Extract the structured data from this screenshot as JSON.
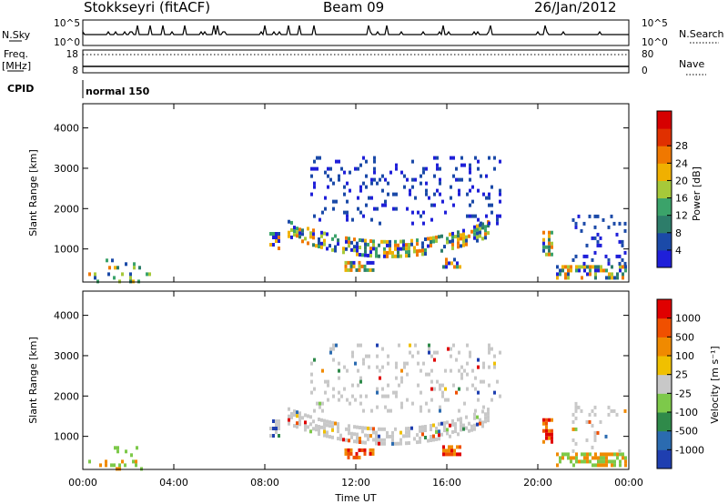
{
  "header": {
    "title": "Stokkseyri (fitACF)",
    "beam": "Beam 09",
    "date": "26/Jan/2012"
  },
  "status_panels": {
    "nsky_label": "N.Sky",
    "nsky_ticks": [
      "10^5",
      "10^0"
    ],
    "nsearch_label": "N.Search",
    "nsearch_ticks": [
      "10^5",
      "10^0"
    ],
    "freq_label": "Freq.",
    "freq_unit": "[MHz]",
    "freq_ticks": [
      "18",
      "8"
    ],
    "nave_label": "Nave",
    "nave_ticks": [
      "80",
      "0"
    ],
    "cpid_label": "CPID",
    "cpid_value": "normal 150"
  },
  "chart_data": [
    {
      "type": "heatmap",
      "name": "power-panel",
      "xlabel": "",
      "ylabel": "Slant Range [km]",
      "xlim": [
        0,
        24
      ],
      "ylim": [
        180,
        4600
      ],
      "y_ticks": [
        1000,
        2000,
        3000,
        4000
      ],
      "y_tick_labels": [
        "1000",
        "2000",
        "3000",
        "4000"
      ],
      "colorbar": {
        "label": "Power [dB]",
        "ticks": [
          "4",
          "8",
          "12",
          "16",
          "20",
          "24",
          "28"
        ],
        "colors": [
          "#1f1fd9",
          "#1b4aa8",
          "#2d7d6a",
          "#3ba36a",
          "#a6c93a",
          "#f0b000",
          "#f07800",
          "#e03000",
          "#d60000"
        ]
      }
    },
    {
      "type": "heatmap",
      "name": "velocity-panel",
      "xlabel": "Time UT",
      "ylabel": "Slant Range [km]",
      "xlim": [
        0,
        24
      ],
      "ylim": [
        180,
        4600
      ],
      "x_ticks": [
        0,
        4,
        8,
        12,
        16,
        20,
        24
      ],
      "x_tick_labels": [
        "00:00",
        "04:00",
        "08:00",
        "12:00",
        "16:00",
        "20:00",
        "00:00"
      ],
      "y_ticks": [
        1000,
        2000,
        3000,
        4000
      ],
      "y_tick_labels": [
        "1000",
        "2000",
        "3000",
        "4000"
      ],
      "colorbar": {
        "label": "Velocity [m s⁻¹]",
        "ticks": [
          "1000",
          "500",
          "100",
          "25",
          "-25",
          "-100",
          "-500",
          "-1000"
        ],
        "colors": [
          "#1f3fb0",
          "#2b6bb0",
          "#2f8a4a",
          "#7dc94a",
          "#c8c8c8",
          "#f0c000",
          "#f08a00",
          "#f05000",
          "#e00000"
        ]
      }
    }
  ]
}
